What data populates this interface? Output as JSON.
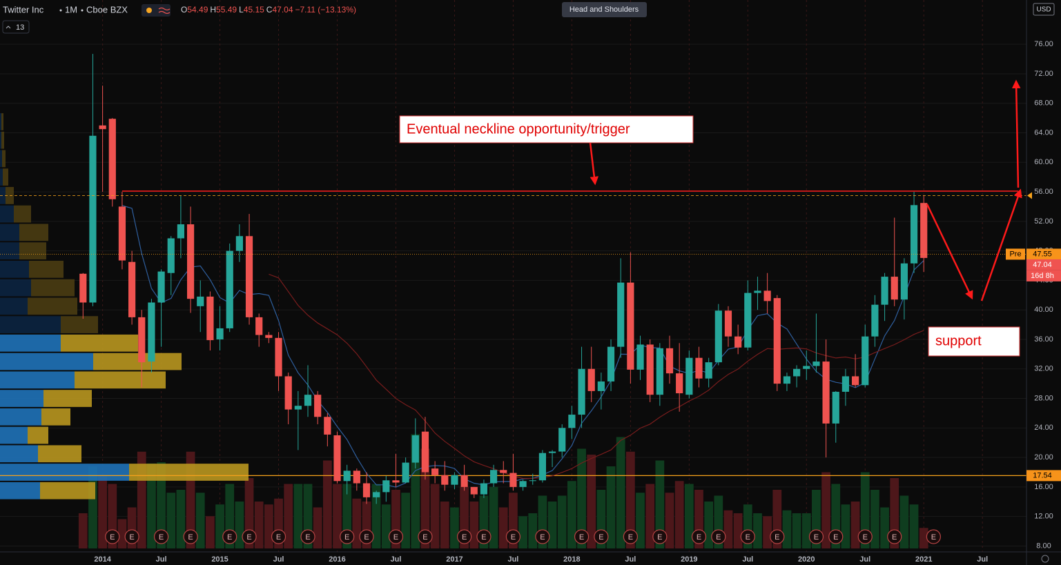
{
  "header": {
    "symbol": "Twitter Inc",
    "interval": "1M",
    "exchange": "Cboe BZX",
    "ohlc_keys": [
      "O",
      "H",
      "L",
      "C"
    ],
    "change": "−7.11 (−13.13%)",
    "indicator_count": "13",
    "pattern_tag": "Head and Shoulders",
    "currency": "USD"
  },
  "chart_data": {
    "type": "candlestick",
    "dates": [
      "2013-11",
      "2013-12",
      "2014-01",
      "2014-02",
      "2014-03",
      "2014-04",
      "2014-05",
      "2014-06",
      "2014-07",
      "2014-08",
      "2014-09",
      "2014-10",
      "2014-11",
      "2014-12",
      "2015-01",
      "2015-02",
      "2015-03",
      "2015-04",
      "2015-05",
      "2015-06",
      "2015-07",
      "2015-08",
      "2015-09",
      "2015-10",
      "2015-11",
      "2015-12",
      "2016-01",
      "2016-02",
      "2016-03",
      "2016-04",
      "2016-05",
      "2016-06",
      "2016-07",
      "2016-08",
      "2016-09",
      "2016-10",
      "2016-11",
      "2016-12",
      "2017-01",
      "2017-02",
      "2017-03",
      "2017-04",
      "2017-05",
      "2017-06",
      "2017-07",
      "2017-08",
      "2017-09",
      "2017-10",
      "2017-11",
      "2017-12",
      "2018-01",
      "2018-02",
      "2018-03",
      "2018-04",
      "2018-05",
      "2018-06",
      "2018-07",
      "2018-08",
      "2018-09",
      "2018-10",
      "2018-11",
      "2018-12",
      "2019-01",
      "2019-02",
      "2019-03",
      "2019-04",
      "2019-05",
      "2019-06",
      "2019-07",
      "2019-08",
      "2019-09",
      "2019-10",
      "2019-11",
      "2019-12",
      "2020-01",
      "2020-02",
      "2020-03",
      "2020-04",
      "2020-05",
      "2020-06",
      "2020-07",
      "2020-08",
      "2020-09",
      "2020-10",
      "2020-11",
      "2020-12",
      "2021-01"
    ],
    "open": [
      44.9,
      41,
      65,
      65.9,
      54,
      46.5,
      39,
      33,
      41,
      45,
      49.7,
      51.6,
      40.5,
      41.8,
      36,
      37.5,
      48,
      50,
      39,
      36.6,
      36.2,
      31,
      26.5,
      27,
      28.5,
      25.5,
      23,
      16.8,
      18.2,
      16.5,
      14.6,
      15.3,
      16.9,
      16.6,
      19.3,
      23.5,
      18.5,
      17.6,
      16.3,
      17.6,
      16,
      15,
      16.5,
      18.3,
      17.9,
      16,
      16.8,
      16.9,
      20.6,
      20.8,
      24,
      25.8,
      32,
      29,
      30.3,
      35,
      43.7,
      31.9,
      35.3,
      28.5,
      34.8,
      31.4,
      28.5,
      33.5,
      30.7,
      32.9,
      39.9,
      36.4,
      34.9,
      42.3,
      42.6,
      41.6,
      30,
      31,
      32,
      32.4,
      33,
      24.6,
      28.9,
      31,
      29.8,
      36.4,
      40.7,
      44.5,
      41.4,
      46.3,
      54.49
    ],
    "high": [
      45,
      74.7,
      70.4,
      66,
      56,
      48,
      40,
      41.5,
      45.5,
      50,
      55.5,
      54,
      44,
      42.5,
      40.5,
      49,
      51.6,
      53,
      39.5,
      37,
      37,
      31.5,
      29,
      32.5,
      29,
      26,
      23.5,
      19,
      18.5,
      18,
      15.5,
      17.5,
      20.5,
      20,
      25.3,
      25.5,
      19.5,
      19.5,
      18,
      19,
      16,
      17,
      19,
      19.5,
      20.5,
      17,
      17.8,
      21,
      21,
      24.5,
      27,
      35,
      35,
      31.5,
      36,
      47,
      47.8,
      36.5,
      36,
      35.5,
      36.5,
      35.5,
      34.5,
      35,
      33.5,
      40.8,
      40.5,
      38,
      44,
      44.5,
      45,
      42,
      31.5,
      32.5,
      34.5,
      39.5,
      36,
      29,
      32,
      34,
      38,
      42,
      45,
      52.5,
      47,
      56,
      55.49
    ],
    "low": [
      38.8,
      40.5,
      56,
      54,
      45.5,
      38,
      29.5,
      31.5,
      35,
      42,
      47,
      39.6,
      37,
      34.5,
      34.5,
      37,
      46.5,
      38,
      35,
      35.5,
      29,
      24.5,
      21,
      25.5,
      24.5,
      21.5,
      16.5,
      15,
      15.5,
      13.7,
      13.7,
      14,
      16,
      16.5,
      18.5,
      17,
      16.5,
      15.5,
      15.7,
      15.5,
      14.5,
      14.5,
      16,
      16.5,
      15.5,
      15.5,
      16.3,
      16.6,
      18.7,
      20,
      22.5,
      24,
      27.5,
      26.5,
      29,
      33.5,
      30,
      30.5,
      27.5,
      27,
      30,
      26.2,
      28,
      29.5,
      29.5,
      32.5,
      35,
      34,
      34.5,
      40,
      39.5,
      29,
      29,
      29.5,
      30.5,
      31.5,
      20,
      22,
      27,
      29.5,
      29.5,
      35,
      38.5,
      40.5,
      38.7,
      45,
      45.15
    ],
    "close": [
      41,
      63.6,
      64.5,
      55,
      46.7,
      39,
      32.9,
      41,
      45.2,
      49.7,
      51.6,
      41.5,
      41.8,
      35.9,
      37.5,
      48,
      50,
      39,
      36.6,
      36.2,
      31,
      26.5,
      27,
      28.5,
      25.5,
      23.1,
      16.8,
      18.2,
      16.5,
      14.6,
      15.3,
      16.9,
      16.6,
      19.3,
      23,
      18,
      17.6,
      16.3,
      17.6,
      16,
      15,
      16.5,
      18.3,
      17.9,
      16,
      16.8,
      16.9,
      20.6,
      20.8,
      24,
      25.8,
      32,
      29,
      30.3,
      35,
      43.7,
      31.9,
      35.3,
      28.5,
      34.8,
      31.4,
      28.7,
      33.5,
      30.7,
      32.9,
      39.9,
      36.4,
      34.9,
      42.3,
      42.6,
      41.2,
      30,
      31,
      32,
      32.4,
      33,
      24.6,
      28.9,
      31,
      29.8,
      36.4,
      40.7,
      44.5,
      41.4,
      46.3,
      54.2,
      47.04
    ],
    "volume": [
      60,
      140,
      125,
      110,
      50,
      70,
      165,
      145,
      147,
      95,
      100,
      165,
      95,
      55,
      75,
      110,
      80,
      120,
      80,
      75,
      85,
      110,
      110,
      110,
      70,
      150,
      110,
      110,
      85,
      80,
      110,
      75,
      100,
      95,
      195,
      170,
      110,
      80,
      70,
      105,
      80,
      90,
      105,
      70,
      95,
      55,
      60,
      90,
      80,
      90,
      115,
      170,
      160,
      100,
      140,
      190,
      165,
      95,
      110,
      150,
      95,
      115,
      110,
      100,
      80,
      90,
      65,
      60,
      75,
      60,
      55,
      100,
      65,
      60,
      60,
      100,
      130,
      110,
      75,
      80,
      130,
      100,
      70,
      120,
      90,
      75,
      35
    ],
    "volume_lim": [
      0,
      200
    ],
    "up_color": "#26a69a",
    "down_color": "#ef5350",
    "up_volume_color": "#0f3d1f",
    "down_volume_color": "#4d171a",
    "ma_periods": [
      5,
      20
    ],
    "ma_colors": [
      "#2f5f9e",
      "#7a1d1d"
    ],
    "xlim": [
      "2013-03",
      "2021-12"
    ],
    "xticks": [
      {
        "value": "2014-01",
        "label": "2014"
      },
      {
        "value": "2014-07",
        "label": "Jul"
      },
      {
        "value": "2015-01",
        "label": "2015"
      },
      {
        "value": "2015-07",
        "label": "Jul"
      },
      {
        "value": "2016-01",
        "label": "2016"
      },
      {
        "value": "2016-07",
        "label": "Jul"
      },
      {
        "value": "2017-01",
        "label": "2017"
      },
      {
        "value": "2017-07",
        "label": "Jul"
      },
      {
        "value": "2018-01",
        "label": "2018"
      },
      {
        "value": "2018-07",
        "label": "Jul"
      },
      {
        "value": "2019-01",
        "label": "2019"
      },
      {
        "value": "2019-07",
        "label": "Jul"
      },
      {
        "value": "2020-01",
        "label": "2020"
      },
      {
        "value": "2020-07",
        "label": "Jul"
      },
      {
        "value": "2021-01",
        "label": "2021"
      },
      {
        "value": "2021-07",
        "label": "Jul"
      }
    ],
    "ylim": [
      7.2,
      82
    ],
    "yticks": [
      {
        "value": 8,
        "label": "8.00"
      },
      {
        "value": 12,
        "label": "12.00"
      },
      {
        "value": 16,
        "label": "16.00"
      },
      {
        "value": 20,
        "label": "20.00"
      },
      {
        "value": 24,
        "label": "24.00"
      },
      {
        "value": 28,
        "label": "28.00"
      },
      {
        "value": 32,
        "label": "32.00"
      },
      {
        "value": 36,
        "label": "36.00"
      },
      {
        "value": 40,
        "label": "40.00"
      },
      {
        "value": 44,
        "label": "44.00"
      },
      {
        "value": 48,
        "label": "48.00"
      },
      {
        "value": 52,
        "label": "52.00"
      },
      {
        "value": 56,
        "label": "56.00"
      },
      {
        "value": 60,
        "label": "60.00"
      },
      {
        "value": 64,
        "label": "64.00"
      },
      {
        "value": 68,
        "label": "68.00"
      },
      {
        "value": 72,
        "label": "72.00"
      },
      {
        "value": 76,
        "label": "76.00"
      }
    ],
    "grid": true,
    "volume_profile": {
      "prices": [
        15.5,
        18,
        20.5,
        23,
        25.5,
        28,
        30.5,
        33,
        35.5,
        38,
        40.5,
        43,
        45.5,
        48,
        50.5,
        53,
        55.5,
        58,
        60.5,
        63,
        65.5
      ],
      "up": [
        58,
        187,
        55,
        40,
        60,
        63,
        108,
        135,
        88,
        88,
        40,
        45,
        42,
        28,
        28,
        20,
        8,
        4,
        3,
        2,
        2
      ],
      "down": [
        80,
        173,
        63,
        30,
        42,
        70,
        132,
        128,
        112,
        54,
        72,
        63,
        50,
        39,
        42,
        25,
        12,
        8,
        5,
        4,
        3
      ],
      "lim": [
        0,
        360
      ],
      "row_height": 2.5,
      "value_area_high": 37,
      "colors": [
        "#1f72b8",
        "#b8961f",
        "#0b2440",
        "#4a3c12"
      ]
    },
    "earnings": {
      "label": "E",
      "dates": [
        "2014-02",
        "2014-04",
        "2014-07",
        "2014-10",
        "2015-02",
        "2015-04",
        "2015-07",
        "2015-10",
        "2016-02",
        "2016-04",
        "2016-07",
        "2016-10",
        "2017-02",
        "2017-04",
        "2017-07",
        "2017-10",
        "2018-02",
        "2018-04",
        "2018-07",
        "2018-10",
        "2019-02",
        "2019-04",
        "2019-07",
        "2019-10",
        "2020-02",
        "2020-04",
        "2020-07",
        "2020-10",
        "2021-02"
      ]
    },
    "neckline": {
      "value": 56.1,
      "start": "2014-03",
      "label": "Eventual neckline opportunity/trigger"
    },
    "support_label": "support",
    "support_level": {
      "value": 17.54
    },
    "premarket": {
      "label": "Pre",
      "value": 47.55
    },
    "countdown": "16d 8h"
  }
}
